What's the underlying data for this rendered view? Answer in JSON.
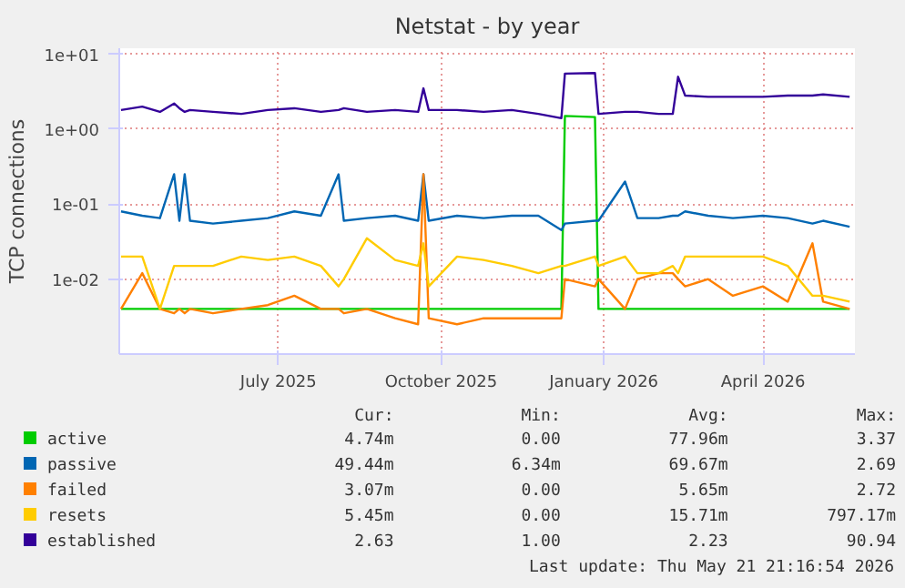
{
  "chart_data": {
    "type": "line",
    "title": "Netstat - by year",
    "ylabel": "TCP connections",
    "log": "y",
    "grid": true,
    "legend": "bottom",
    "ylim": [
      0.001,
      12
    ],
    "yticks": [
      {
        "value": 0.01,
        "label": "1e-02"
      },
      {
        "value": 0.1,
        "label": "1e-01"
      },
      {
        "value": 1,
        "label": "1e+00"
      },
      {
        "value": 10,
        "label": "1e+01"
      }
    ],
    "xlim": [
      "2025-04-02",
      "2026-05-23"
    ],
    "xticks": [
      {
        "value": "2025-07-01",
        "label": "July 2025"
      },
      {
        "value": "2025-10-01",
        "label": "October 2025"
      },
      {
        "value": "2026-01-01",
        "label": "January 2026"
      },
      {
        "value": "2026-04-01",
        "label": "April 2026"
      }
    ],
    "x": [
      "2025-04-03",
      "2025-04-15",
      "2025-04-25",
      "2025-05-03",
      "2025-05-06",
      "2025-05-09",
      "2025-05-12",
      "2025-05-25",
      "2025-06-10",
      "2025-06-25",
      "2025-07-10",
      "2025-07-25",
      "2025-08-04",
      "2025-08-07",
      "2025-08-20",
      "2025-09-05",
      "2025-09-18",
      "2025-09-21",
      "2025-09-24",
      "2025-10-10",
      "2025-10-25",
      "2025-11-10",
      "2025-11-25",
      "2025-12-08",
      "2025-12-10",
      "2025-12-27",
      "2025-12-29",
      "2026-01-13",
      "2026-01-20",
      "2026-02-01",
      "2026-02-09",
      "2026-02-12",
      "2026-02-16",
      "2026-03-01",
      "2026-03-15",
      "2026-04-01",
      "2026-04-15",
      "2026-04-29",
      "2026-05-05",
      "2026-05-20"
    ],
    "series": [
      {
        "name": "active",
        "color": "#00cc00",
        "values": [
          0.004,
          0.004,
          0.004,
          0.004,
          0.004,
          0.004,
          0.004,
          0.004,
          0.004,
          0.004,
          0.004,
          0.004,
          0.004,
          0.004,
          0.004,
          0.004,
          0.004,
          0.004,
          0.004,
          0.004,
          0.004,
          0.004,
          0.004,
          0.004,
          1.5,
          1.45,
          0.004,
          0.004,
          0.004,
          0.004,
          0.004,
          0.004,
          0.004,
          0.004,
          0.004,
          0.004,
          0.004,
          0.004,
          0.004,
          0.004
        ]
      },
      {
        "name": "passive",
        "color": "#0066b3",
        "values": [
          0.08,
          0.07,
          0.065,
          0.25,
          0.06,
          0.25,
          0.06,
          0.055,
          0.06,
          0.065,
          0.08,
          0.07,
          0.25,
          0.06,
          0.065,
          0.07,
          0.06,
          0.25,
          0.06,
          0.07,
          0.065,
          0.07,
          0.07,
          0.045,
          0.055,
          0.06,
          0.06,
          0.2,
          0.065,
          0.065,
          0.07,
          0.07,
          0.08,
          0.07,
          0.065,
          0.07,
          0.065,
          0.055,
          0.06,
          0.05
        ]
      },
      {
        "name": "failed",
        "color": "#ff8000",
        "values": [
          0.004,
          0.012,
          0.004,
          0.0035,
          0.004,
          0.0035,
          0.004,
          0.0035,
          0.004,
          0.0045,
          0.006,
          0.004,
          0.004,
          0.0035,
          0.004,
          0.003,
          0.0025,
          0.25,
          0.003,
          0.0025,
          0.003,
          0.003,
          0.003,
          0.003,
          0.01,
          0.008,
          0.01,
          0.004,
          0.01,
          0.012,
          0.012,
          0.01,
          0.008,
          0.01,
          0.006,
          0.008,
          0.005,
          0.03,
          0.005,
          0.004
        ]
      },
      {
        "name": "resets",
        "color": "#ffcc00",
        "values": [
          0.02,
          0.02,
          0.004,
          0.015,
          0.015,
          0.015,
          0.015,
          0.015,
          0.02,
          0.018,
          0.02,
          0.015,
          0.008,
          0.01,
          0.035,
          0.018,
          0.015,
          0.03,
          0.008,
          0.02,
          0.018,
          0.015,
          0.012,
          0.015,
          0.015,
          0.02,
          0.015,
          0.02,
          0.012,
          0.012,
          0.015,
          0.012,
          0.02,
          0.02,
          0.02,
          0.02,
          0.015,
          0.006,
          0.006,
          0.005
        ]
      },
      {
        "name": "established",
        "color": "#330099",
        "values": [
          1.8,
          2.0,
          1.7,
          2.2,
          1.9,
          1.7,
          1.8,
          1.7,
          1.6,
          1.8,
          1.9,
          1.7,
          1.8,
          1.9,
          1.7,
          1.8,
          1.7,
          3.5,
          1.8,
          1.8,
          1.7,
          1.8,
          1.6,
          1.4,
          5.5,
          5.6,
          1.6,
          1.7,
          1.7,
          1.6,
          1.6,
          5.0,
          2.8,
          2.7,
          2.7,
          2.7,
          2.8,
          2.8,
          2.9,
          2.7
        ]
      }
    ],
    "annotations": [
      "Cur:",
      "Min:",
      "Avg:",
      "Max:",
      "4.74m",
      "0.00",
      "77.96m",
      "3.37",
      "49.44m",
      "6.34m",
      "69.67m",
      "2.69",
      "3.07m",
      "0.00",
      "5.65m",
      "2.72",
      "5.45m",
      "0.00",
      "15.71m",
      "797.17m",
      "2.63",
      "1.00",
      "2.23",
      "90.94",
      "Last update: Thu May 21 21:16:54 2026"
    ]
  }
}
